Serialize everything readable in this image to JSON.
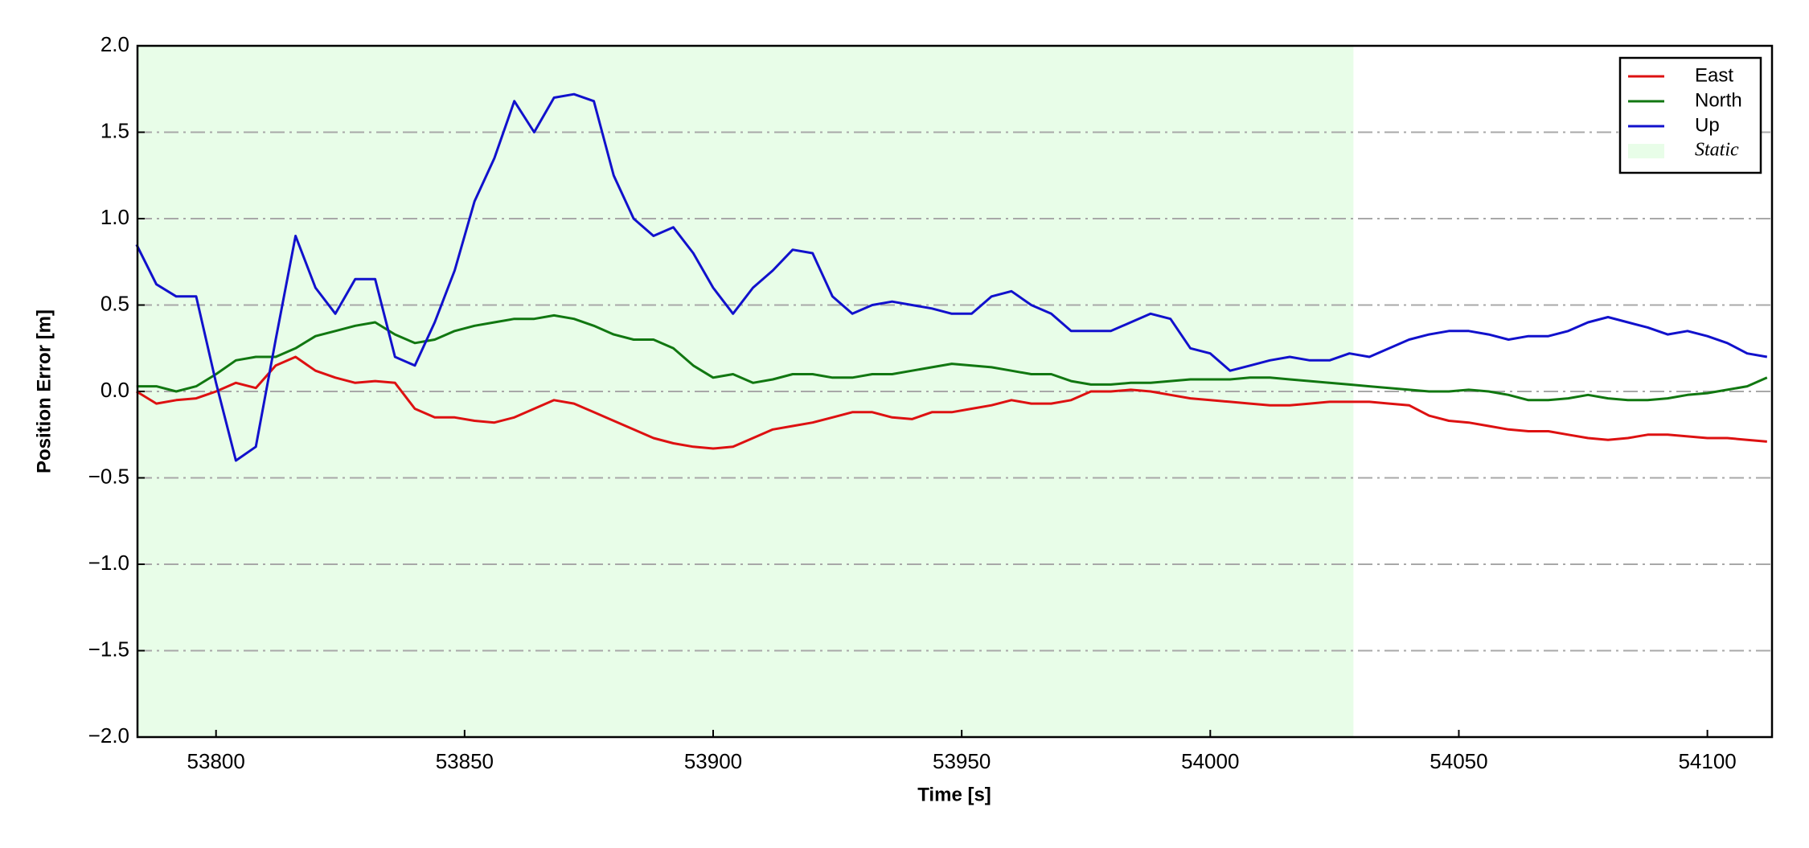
{
  "chart_data": {
    "type": "line",
    "xlabel": "Time [s]",
    "ylabel": "Position Error [m]",
    "x": [
      53784,
      53788,
      53792,
      53796,
      53800,
      53804,
      53808,
      53812,
      53816,
      53820,
      53824,
      53828,
      53832,
      53836,
      53840,
      53844,
      53848,
      53852,
      53856,
      53860,
      53864,
      53868,
      53872,
      53876,
      53880,
      53884,
      53888,
      53892,
      53896,
      53900,
      53904,
      53908,
      53912,
      53916,
      53920,
      53924,
      53928,
      53932,
      53936,
      53940,
      53944,
      53948,
      53952,
      53956,
      53960,
      53964,
      53968,
      53972,
      53976,
      53980,
      53984,
      53988,
      53992,
      53996,
      54000,
      54004,
      54008,
      54012,
      54016,
      54020,
      54024,
      54028,
      54032,
      54036,
      54040,
      54044,
      54048,
      54052,
      54056,
      54060,
      54064,
      54068,
      54072,
      54076,
      54080,
      54084,
      54088,
      54092,
      54096,
      54100,
      54104,
      54108,
      54112
    ],
    "series": [
      {
        "name": "East",
        "color": "#dd1111",
        "values": [
          0.0,
          -0.07,
          -0.05,
          -0.04,
          0.0,
          0.05,
          0.02,
          0.15,
          0.2,
          0.12,
          0.08,
          0.05,
          0.06,
          0.05,
          -0.1,
          -0.15,
          -0.15,
          -0.17,
          -0.18,
          -0.15,
          -0.1,
          -0.05,
          -0.07,
          -0.12,
          -0.17,
          -0.22,
          -0.27,
          -0.3,
          -0.32,
          -0.33,
          -0.32,
          -0.27,
          -0.22,
          -0.2,
          -0.18,
          -0.15,
          -0.12,
          -0.12,
          -0.15,
          -0.16,
          -0.12,
          -0.12,
          -0.1,
          -0.08,
          -0.05,
          -0.07,
          -0.07,
          -0.05,
          0.0,
          0.0,
          0.01,
          0.0,
          -0.02,
          -0.04,
          -0.05,
          -0.06,
          -0.07,
          -0.08,
          -0.08,
          -0.07,
          -0.06,
          -0.06,
          -0.06,
          -0.07,
          -0.08,
          -0.14,
          -0.17,
          -0.18,
          -0.2,
          -0.22,
          -0.23,
          -0.23,
          -0.25,
          -0.27,
          -0.28,
          -0.27,
          -0.25,
          -0.25,
          -0.26,
          -0.27,
          -0.27,
          -0.28,
          -0.29
        ]
      },
      {
        "name": "North",
        "color": "#117711",
        "values": [
          0.03,
          0.03,
          0.0,
          0.03,
          0.1,
          0.18,
          0.2,
          0.2,
          0.25,
          0.32,
          0.35,
          0.38,
          0.4,
          0.33,
          0.28,
          0.3,
          0.35,
          0.38,
          0.4,
          0.42,
          0.42,
          0.44,
          0.42,
          0.38,
          0.33,
          0.3,
          0.3,
          0.25,
          0.15,
          0.08,
          0.1,
          0.05,
          0.07,
          0.1,
          0.1,
          0.08,
          0.08,
          0.1,
          0.1,
          0.12,
          0.14,
          0.16,
          0.15,
          0.14,
          0.12,
          0.1,
          0.1,
          0.06,
          0.04,
          0.04,
          0.05,
          0.05,
          0.06,
          0.07,
          0.07,
          0.07,
          0.08,
          0.08,
          0.07,
          0.06,
          0.05,
          0.04,
          0.03,
          0.02,
          0.01,
          0.0,
          0.0,
          0.01,
          0.0,
          -0.02,
          -0.05,
          -0.05,
          -0.04,
          -0.02,
          -0.04,
          -0.05,
          -0.05,
          -0.04,
          -0.02,
          -0.01,
          0.01,
          0.03,
          0.08
        ]
      },
      {
        "name": "Up",
        "color": "#1111cc",
        "values": [
          0.85,
          0.62,
          0.55,
          0.55,
          0.05,
          -0.4,
          -0.32,
          0.3,
          0.9,
          0.6,
          0.45,
          0.65,
          0.65,
          0.2,
          0.15,
          0.4,
          0.7,
          1.1,
          1.35,
          1.68,
          1.5,
          1.7,
          1.72,
          1.68,
          1.25,
          1.0,
          0.9,
          0.95,
          0.8,
          0.6,
          0.45,
          0.6,
          0.7,
          0.82,
          0.8,
          0.55,
          0.45,
          0.5,
          0.52,
          0.5,
          0.48,
          0.45,
          0.45,
          0.55,
          0.58,
          0.5,
          0.45,
          0.35,
          0.35,
          0.35,
          0.4,
          0.45,
          0.42,
          0.25,
          0.22,
          0.12,
          0.15,
          0.18,
          0.2,
          0.18,
          0.18,
          0.22,
          0.2,
          0.25,
          0.3,
          0.33,
          0.35,
          0.35,
          0.33,
          0.3,
          0.32,
          0.32,
          0.35,
          0.4,
          0.43,
          0.4,
          0.37,
          0.33,
          0.35,
          0.32,
          0.28,
          0.22,
          0.2
        ]
      }
    ],
    "static_span": {
      "name": "Static",
      "color": "#e8fde8",
      "range": [
        53784.2,
        54028.8
      ]
    },
    "xlim": [
      53784.2,
      54113
    ],
    "xticks": [
      53800,
      53850,
      53900,
      53950,
      54000,
      54050,
      54100
    ],
    "ylim": [
      -2.0,
      2.0
    ],
    "yticks": [
      {
        "value": -2.0,
        "label": "−2.0"
      },
      {
        "value": -1.5,
        "label": "−1.5"
      },
      {
        "value": -1.0,
        "label": "−1.0"
      },
      {
        "value": -0.5,
        "label": "−0.5"
      },
      {
        "value": 0.0,
        "label": "0.0"
      },
      {
        "value": 0.5,
        "label": "0.5"
      },
      {
        "value": 1.0,
        "label": "1.0"
      },
      {
        "value": 1.5,
        "label": "1.5"
      },
      {
        "value": 2.0,
        "label": "2.0"
      }
    ],
    "grid": true,
    "legend": "upper right"
  }
}
